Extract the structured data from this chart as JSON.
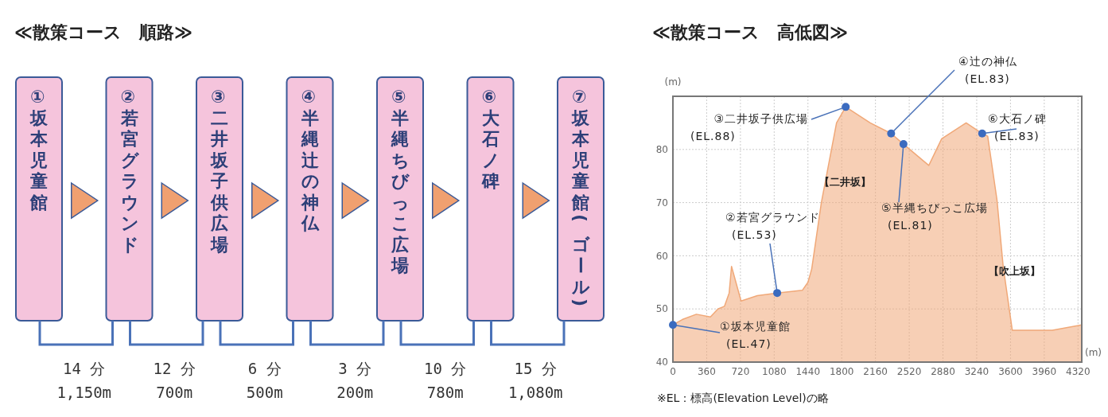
{
  "chart_data": [
    {
      "type": "other",
      "title": "≪散策コース　順路≫",
      "categories": [
        "①坂本児童館",
        "②若宮グラウンド",
        "③二井坂子供広場",
        "④半縄辻の神仏",
        "⑤半縄ちびっこ広場",
        "⑥大石ノ碑",
        "⑦坂本児童館(ゴール)"
      ],
      "annotations": [
        "14 分\n1,150m",
        "12 分\n700m",
        "6 分\n500m",
        "3 分\n200m",
        "10 分\n780m",
        "15 分\n1,080m"
      ]
    },
    {
      "type": "area",
      "title": "≪散策コース　高低図≫",
      "ylabel": "(m)",
      "xlabel": "(m)",
      "x": [
        0,
        100,
        250,
        400,
        480,
        550,
        600,
        625,
        727,
        900,
        1112,
        1380,
        1440,
        1480,
        1583,
        1745,
        1843,
        2104,
        2327,
        2459,
        2729,
        2866,
        3127,
        3298,
        3357,
        3456,
        3522,
        3619,
        3722,
        4046,
        4360
      ],
      "series": [
        {
          "color": "#f0a878",
          "values": [
            47,
            48,
            49,
            48.5,
            50,
            50.5,
            53,
            58,
            51.5,
            52.5,
            53,
            53.5,
            55,
            57.5,
            70,
            85,
            88,
            85,
            83,
            81,
            77,
            82,
            85,
            83,
            82.5,
            70.5,
            58,
            46,
            46,
            46,
            47
          ]
        }
      ],
      "xlim": [
        0,
        4360
      ],
      "xticks": [
        0,
        360,
        720,
        1080,
        1440,
        1800,
        2160,
        2520,
        2880,
        3240,
        3600,
        3960,
        4320
      ],
      "ylim": [
        40,
        90
      ],
      "yticks": [
        40,
        50,
        60,
        70,
        80
      ],
      "grid": true,
      "annotations": [
        {
          "text": "①坂本児童館\n(EL.47)",
          "x": 0,
          "y": 47
        },
        {
          "text": "②若宮グラウンド\n(EL.53)",
          "x": 1112,
          "y": 53
        },
        {
          "text": "③二井坂子供広場\n(EL.88)",
          "x": 1843,
          "y": 88
        },
        {
          "text": "④辻の神仏\n(EL.83)",
          "x": 2327,
          "y": 83
        },
        {
          "text": "⑤半縄ちびっこ広場\n(EL.81)",
          "x": 2459,
          "y": 81
        },
        {
          "text": "⑥大石ノ碑\n(EL.83)",
          "x": 3298,
          "y": 83
        },
        "【二井坂】",
        "【吹上坂】",
        "※EL：標高(Elevation Level)の略"
      ]
    }
  ]
}
